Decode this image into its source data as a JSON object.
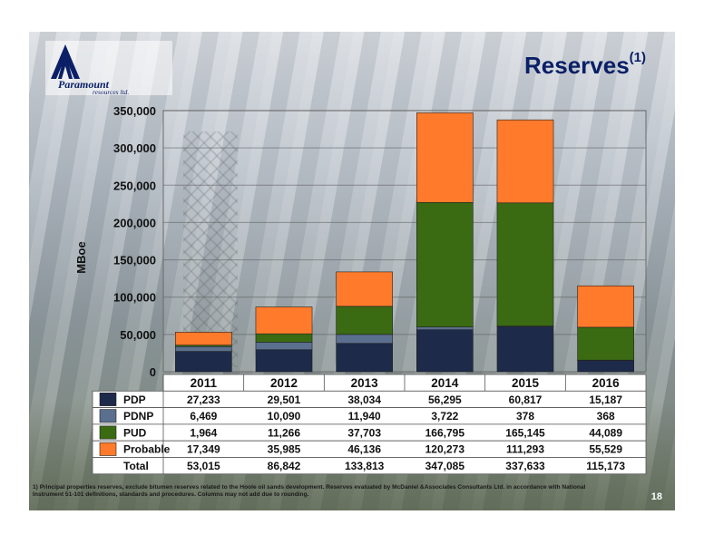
{
  "slide": {
    "title": "Reserves",
    "title_sup": "(1)",
    "page_number": "18",
    "footnote_line1": "1) Principal properties reserves, exclude bitumen reserves related to the Hoole oil sands development. Reserves evaluated by McDaniel &Associates Consultants Ltd. in accordance with National",
    "footnote_line2": "Instrument 51-101 definitions, standards and procedures.  Columns may not add due to rounding."
  },
  "logo": {
    "name": "Paramount",
    "sub": "resources ltd."
  },
  "chart_data": {
    "type": "bar",
    "stacked": true,
    "categories": [
      "2011",
      "2012",
      "2013",
      "2014",
      "2015",
      "2016"
    ],
    "ylabel": "MBoe",
    "ylim": [
      0,
      350000
    ],
    "yticks": [
      0,
      50000,
      100000,
      150000,
      200000,
      250000,
      300000,
      350000
    ],
    "ytick_labels": [
      "0",
      "50,000",
      "100,000",
      "150,000",
      "200,000",
      "250,000",
      "300,000",
      "350,000"
    ],
    "series": [
      {
        "name": "PDP",
        "color": "#1e2a4a",
        "values": [
          27233,
          29501,
          38034,
          56295,
          60817,
          15187
        ],
        "labels": [
          "27,233",
          "29,501",
          "38,034",
          "56,295",
          "60,817",
          "15,187"
        ]
      },
      {
        "name": "PDNP",
        "color": "#5b6f8f",
        "values": [
          6469,
          10090,
          11940,
          3722,
          378,
          368
        ],
        "labels": [
          "6,469",
          "10,090",
          "11,940",
          "3,722",
          "378",
          "368"
        ]
      },
      {
        "name": "PUD",
        "color": "#3a6a12",
        "values": [
          1964,
          11266,
          37703,
          166795,
          165145,
          44089
        ],
        "labels": [
          "1,964",
          "11,266",
          "37,703",
          "166,795",
          "165,145",
          "44,089"
        ]
      },
      {
        "name": "Probable",
        "color": "#ff7a2a",
        "values": [
          17349,
          35985,
          46136,
          120273,
          111293,
          55529
        ],
        "labels": [
          "17,349",
          "35,985",
          "46,136",
          "120,273",
          "111,293",
          "55,529"
        ]
      }
    ],
    "total_label": "Total",
    "totals": [
      "53,015",
      "86,842",
      "133,813",
      "347,085",
      "337,633",
      "115,173"
    ],
    "grid": true,
    "legend": "table-left"
  }
}
